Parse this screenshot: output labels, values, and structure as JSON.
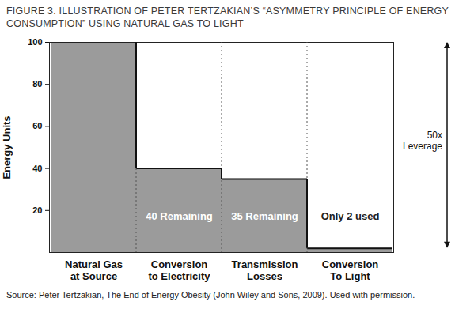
{
  "chart_data": {
    "type": "bar",
    "title": "FIGURE 3. ILLUSTRATION OF PETER TERTZAKIAN’S “ASYMMETRY PRINCIPLE OF ENERGY CONSUMPTION” USING NATURAL GAS TO LIGHT",
    "caption": "Source: Peter Tertzakian, The End of Energy Obesity (John Wiley and Sons, 2009). Used with permission.",
    "y_label": "Energy Units",
    "categories": [
      "Natural Gas at Source",
      "Conversion to Electricity",
      "Transmission Losses",
      "Conversion To Light"
    ],
    "values": [
      100,
      40,
      35,
      2
    ],
    "color": "#9b9b9b",
    "ylim": [
      0,
      100
    ],
    "yticks": [
      20,
      40,
      60,
      80,
      100
    ],
    "grid": false,
    "annotations": [
      {
        "category": "Conversion to Electricity",
        "text": "40 Remaining",
        "color": "#ffffff"
      },
      {
        "category": "Transmission Losses",
        "text": "35 Remaining",
        "color": "#ffffff"
      },
      {
        "category": "Conversion To Light",
        "text": "Only 2 used",
        "color": "#222222"
      }
    ],
    "leverage": {
      "text": "50x Leverage",
      "from": 100,
      "to": 2
    }
  }
}
